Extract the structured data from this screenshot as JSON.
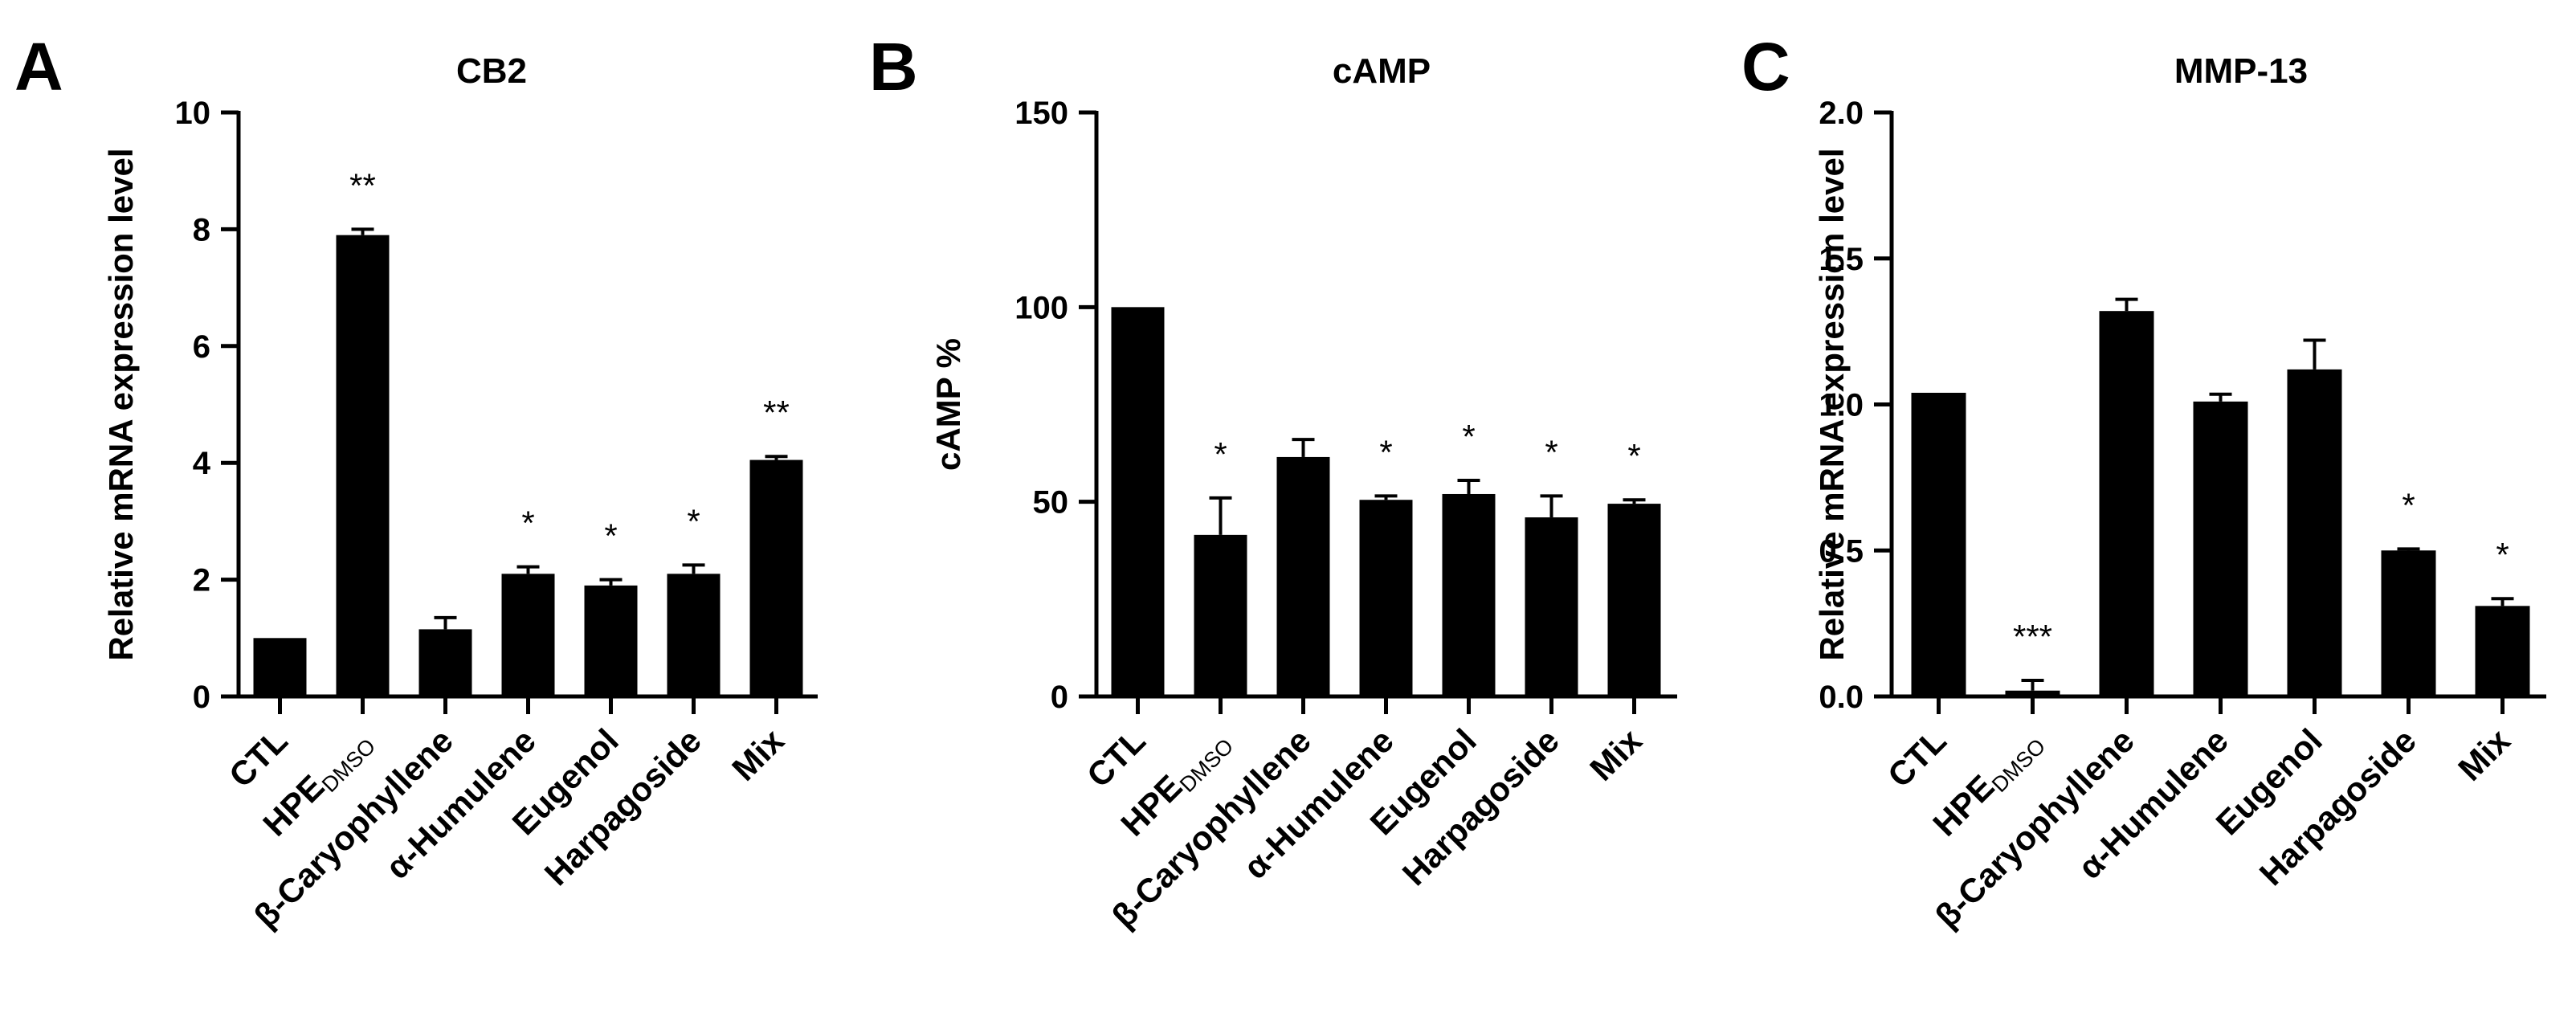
{
  "colors": {
    "bar": "#000000",
    "axis": "#000000",
    "background": "#ffffff"
  },
  "chart_data": [
    {
      "panel": "A",
      "type": "bar",
      "title": "CB2",
      "ylabel": "Relative mRNA expression level",
      "xlabel": "",
      "ylim": [
        0,
        10
      ],
      "yticks": [
        0,
        2,
        4,
        6,
        8,
        10
      ],
      "categories": [
        {
          "main": "CTL",
          "sub": ""
        },
        {
          "main": "HPE",
          "sub": "DMSO"
        },
        {
          "main": "β-Caryophyllene",
          "sub": ""
        },
        {
          "main": "α-Humulene",
          "sub": ""
        },
        {
          "main": "Eugenol",
          "sub": ""
        },
        {
          "main": "Harpagoside",
          "sub": ""
        },
        {
          "main": "Mix",
          "sub": ""
        }
      ],
      "values": [
        1.0,
        7.9,
        1.15,
        2.1,
        1.9,
        2.1,
        4.05
      ],
      "errors": [
        0.0,
        0.1,
        0.2,
        0.12,
        0.1,
        0.15,
        0.06
      ],
      "significance": [
        "",
        "**",
        "",
        "*",
        "*",
        "*",
        "**"
      ],
      "grid": false,
      "legend": "none"
    },
    {
      "panel": "B",
      "type": "bar",
      "title": "cAMP",
      "ylabel": "cAMP %",
      "xlabel": "",
      "ylim": [
        0,
        150
      ],
      "yticks": [
        0,
        50,
        100,
        150
      ],
      "categories": [
        {
          "main": "CTL",
          "sub": ""
        },
        {
          "main": "HPE",
          "sub": "DMSO"
        },
        {
          "main": "β-Caryophyllene",
          "sub": ""
        },
        {
          "main": "α-Humulene",
          "sub": ""
        },
        {
          "main": "Eugenol",
          "sub": ""
        },
        {
          "main": "Harpagoside",
          "sub": ""
        },
        {
          "main": "Mix",
          "sub": ""
        }
      ],
      "values": [
        100,
        41.5,
        61.5,
        50.5,
        52,
        46,
        49.5
      ],
      "errors": [
        0,
        9.5,
        4.5,
        1,
        3.5,
        5.5,
        1
      ],
      "significance": [
        "",
        "*",
        "",
        "*",
        "*",
        "*",
        "*"
      ],
      "grid": false,
      "legend": "none"
    },
    {
      "panel": "C",
      "type": "bar",
      "title": "MMP-13",
      "ylabel": "Relative mRNA expression level",
      "xlabel": "",
      "ylim": [
        0,
        2.0
      ],
      "yticks": [
        "0.0",
        "0.5",
        "1.0",
        "1.5",
        "2.0"
      ],
      "categories": [
        {
          "main": "CTL",
          "sub": ""
        },
        {
          "main": "HPE",
          "sub": "DMSO"
        },
        {
          "main": "β-Caryophyllene",
          "sub": ""
        },
        {
          "main": "α-Humulene",
          "sub": ""
        },
        {
          "main": "Eugenol",
          "sub": ""
        },
        {
          "main": "Harpagoside",
          "sub": ""
        },
        {
          "main": "Mix",
          "sub": ""
        }
      ],
      "values": [
        1.04,
        0.02,
        1.32,
        1.01,
        1.12,
        0.5,
        0.31
      ],
      "errors": [
        0.0,
        0.035,
        0.04,
        0.025,
        0.1,
        0.005,
        0.025
      ],
      "significance": [
        "",
        "***",
        "",
        "",
        "",
        "*",
        "*"
      ],
      "grid": false,
      "legend": "none"
    }
  ]
}
